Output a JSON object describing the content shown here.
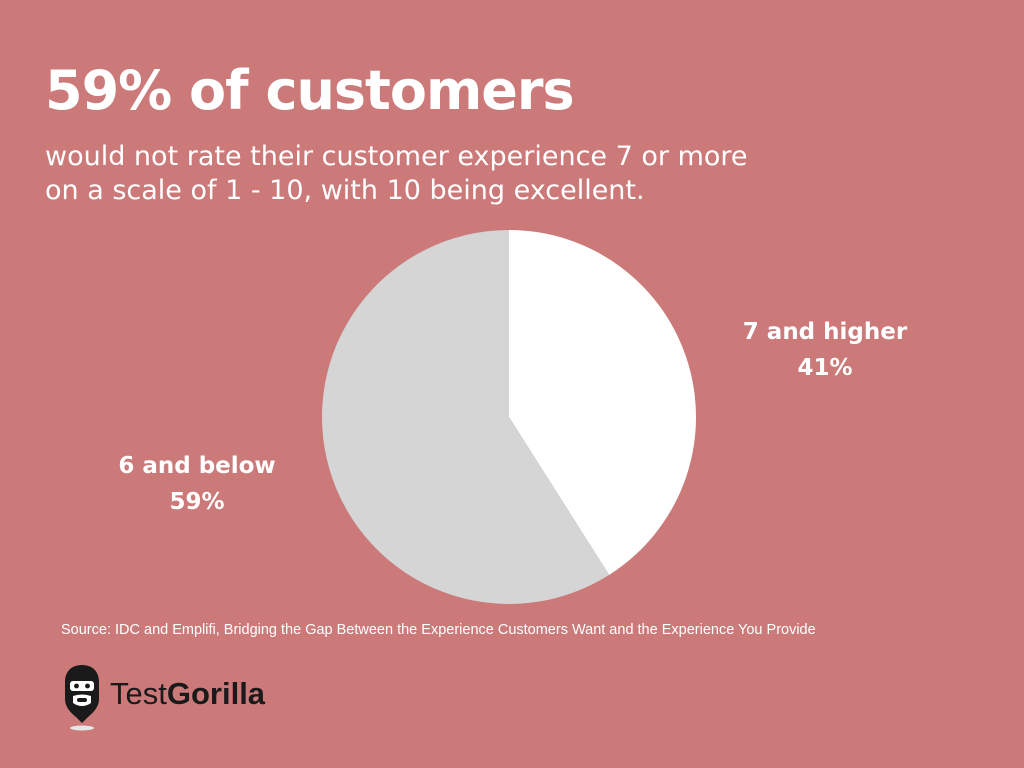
{
  "headline": "59% of customers",
  "subtitle": {
    "line1": "would not rate their customer experience 7 or more",
    "line2": "on a scale of 1 - 10, with 10 being excellent."
  },
  "chart_data": {
    "type": "pie",
    "slices": [
      {
        "label": "7 and higher",
        "value": 41,
        "display": "41%",
        "color": "#ffffff"
      },
      {
        "label": "6 and below",
        "value": 59,
        "display": "59%",
        "color": "#d5d5d5"
      }
    ]
  },
  "source": "Source: IDC and Emplifi, Bridging the Gap Between the Experience Customers Want and the Experience You Provide",
  "logo": {
    "text_light": "Test",
    "text_bold": "Gorilla",
    "icon": "gorilla-icon"
  },
  "colors": {
    "background": "#cb7979",
    "text": "#ffffff",
    "logo_text": "#1a1a1a"
  }
}
